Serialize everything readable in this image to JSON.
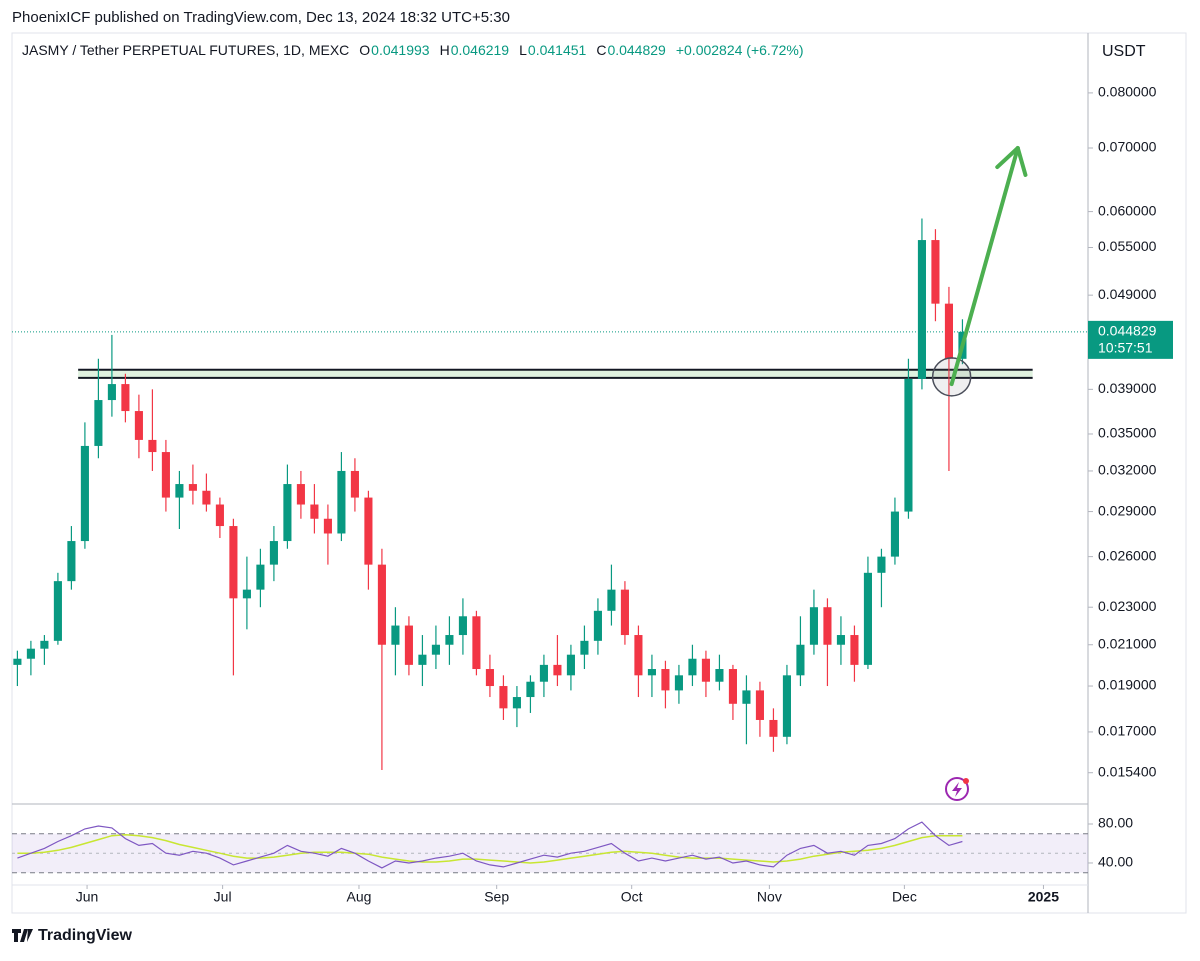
{
  "header": {
    "publisher": "PhoenixICF published on TradingView.com, Dec 13, 2024 18:32 UTC+5:30",
    "symbol": "JASMY / Tether PERPETUAL FUTURES, 1D, MEXC",
    "ohlc": [
      {
        "key": "O",
        "value": "0.041993"
      },
      {
        "key": "H",
        "value": "0.046219"
      },
      {
        "key": "L",
        "value": "0.041451"
      },
      {
        "key": "C",
        "value": "0.044829"
      }
    ],
    "change": "+0.002824 (+6.72%)",
    "currency": "USDT"
  },
  "chart_data": [
    {
      "type": "candlestick",
      "log_scale": true,
      "grid": false,
      "up_color": "#089981",
      "down_color": "#f23645",
      "open": [
        0.02,
        0.0203,
        0.0208,
        0.0212,
        0.0245,
        0.027,
        0.034,
        0.038,
        0.0395,
        0.037,
        0.0345,
        0.0335,
        0.03,
        0.031,
        0.0305,
        0.0295,
        0.028,
        0.0235,
        0.024,
        0.0255,
        0.027,
        0.031,
        0.0295,
        0.0285,
        0.0275,
        0.032,
        0.03,
        0.0255,
        0.021,
        0.022,
        0.02,
        0.0205,
        0.021,
        0.0215,
        0.0225,
        0.0198,
        0.019,
        0.018,
        0.0185,
        0.0192,
        0.02,
        0.0195,
        0.0205,
        0.0212,
        0.0228,
        0.024,
        0.0215,
        0.0195,
        0.0198,
        0.0188,
        0.0195,
        0.0203,
        0.0192,
        0.0198,
        0.0182,
        0.0188,
        0.0175,
        0.0168,
        0.0195,
        0.021,
        0.023,
        0.021,
        0.0215,
        0.02,
        0.025,
        0.026,
        0.029,
        0.04,
        0.056,
        0.048,
        0.041993
      ],
      "high": [
        0.0207,
        0.0212,
        0.0215,
        0.025,
        0.028,
        0.036,
        0.042,
        0.0445,
        0.0405,
        0.0385,
        0.039,
        0.0345,
        0.032,
        0.0325,
        0.0318,
        0.03,
        0.0285,
        0.026,
        0.0265,
        0.028,
        0.0325,
        0.032,
        0.031,
        0.0295,
        0.0335,
        0.033,
        0.0305,
        0.0265,
        0.023,
        0.0225,
        0.0215,
        0.022,
        0.0225,
        0.0235,
        0.0228,
        0.0205,
        0.0195,
        0.019,
        0.0195,
        0.0205,
        0.0215,
        0.021,
        0.022,
        0.0235,
        0.0255,
        0.0245,
        0.022,
        0.0205,
        0.0202,
        0.02,
        0.021,
        0.0207,
        0.0205,
        0.02,
        0.0195,
        0.0192,
        0.018,
        0.02,
        0.0225,
        0.024,
        0.0235,
        0.0225,
        0.022,
        0.026,
        0.0265,
        0.03,
        0.042,
        0.059,
        0.0575,
        0.05,
        0.046219
      ],
      "low": [
        0.019,
        0.0195,
        0.02,
        0.021,
        0.024,
        0.0265,
        0.033,
        0.0365,
        0.036,
        0.033,
        0.032,
        0.029,
        0.0278,
        0.0295,
        0.029,
        0.0272,
        0.0195,
        0.0218,
        0.023,
        0.0245,
        0.0265,
        0.0285,
        0.0275,
        0.0255,
        0.027,
        0.029,
        0.024,
        0.0155,
        0.0195,
        0.0195,
        0.019,
        0.0198,
        0.02,
        0.0205,
        0.0195,
        0.0185,
        0.0175,
        0.0172,
        0.0178,
        0.0185,
        0.019,
        0.0188,
        0.0198,
        0.0205,
        0.022,
        0.021,
        0.0185,
        0.0185,
        0.018,
        0.0182,
        0.019,
        0.0185,
        0.0188,
        0.0175,
        0.0165,
        0.0168,
        0.0162,
        0.0165,
        0.019,
        0.0205,
        0.019,
        0.02,
        0.0192,
        0.0198,
        0.023,
        0.0255,
        0.0285,
        0.039,
        0.046,
        0.032,
        0.041451
      ],
      "close": [
        0.0203,
        0.0208,
        0.0212,
        0.0245,
        0.027,
        0.034,
        0.038,
        0.0395,
        0.037,
        0.0345,
        0.0335,
        0.03,
        0.031,
        0.0305,
        0.0295,
        0.028,
        0.0235,
        0.024,
        0.0255,
        0.027,
        0.031,
        0.0295,
        0.0285,
        0.0275,
        0.032,
        0.03,
        0.0255,
        0.021,
        0.022,
        0.02,
        0.0205,
        0.021,
        0.0215,
        0.0225,
        0.0198,
        0.019,
        0.018,
        0.0185,
        0.0192,
        0.02,
        0.0195,
        0.0205,
        0.0212,
        0.0228,
        0.024,
        0.0215,
        0.0195,
        0.0198,
        0.0188,
        0.0195,
        0.0203,
        0.0192,
        0.0198,
        0.0182,
        0.0188,
        0.0175,
        0.0168,
        0.0195,
        0.021,
        0.023,
        0.021,
        0.0215,
        0.02,
        0.025,
        0.026,
        0.029,
        0.04,
        0.056,
        0.048,
        0.042,
        0.044829
      ],
      "ylim": [
        0.01431,
        0.0925
      ],
      "yticks": [
        {
          "value": 0.08,
          "label": "0.080000"
        },
        {
          "value": 0.07,
          "label": "0.070000"
        },
        {
          "value": 0.06,
          "label": "0.060000"
        },
        {
          "value": 0.055,
          "label": "0.055000"
        },
        {
          "value": 0.049,
          "label": "0.049000"
        },
        {
          "value": 0.039,
          "label": "0.039000"
        },
        {
          "value": 0.035,
          "label": "0.035000"
        },
        {
          "value": 0.032,
          "label": "0.032000"
        },
        {
          "value": 0.029,
          "label": "0.029000"
        },
        {
          "value": 0.026,
          "label": "0.026000"
        },
        {
          "value": 0.023,
          "label": "0.023000"
        },
        {
          "value": 0.021,
          "label": "0.021000"
        },
        {
          "value": 0.019,
          "label": "0.019000"
        },
        {
          "value": 0.017,
          "label": "0.017000"
        },
        {
          "value": 0.0154,
          "label": "0.015400"
        }
      ],
      "xlim": [
        -0.4,
        79.3
      ],
      "xticks": [
        {
          "value": 5.16,
          "label": "Jun"
        },
        {
          "value": 15.2,
          "label": "Jul"
        },
        {
          "value": 25.3,
          "label": "Aug"
        },
        {
          "value": 35.5,
          "label": "Sep"
        },
        {
          "value": 45.5,
          "label": "Oct"
        },
        {
          "value": 55.7,
          "label": "Nov"
        },
        {
          "value": 65.7,
          "label": "Dec"
        },
        {
          "value": 76,
          "label": "2025"
        }
      ],
      "last_price": {
        "value": 0.044829,
        "label": "0.044829",
        "countdown": "10:57:51"
      },
      "zone": {
        "x": [
          4.5,
          75.2
        ],
        "y": [
          0.0401,
          0.0409
        ]
      },
      "arrow": {
        "x": [
          69.2,
          74.1
        ],
        "y": [
          0.0395,
          0.07
        ],
        "color": "#4caf50"
      },
      "circle": {
        "x": 69.2,
        "y": 0.0402
      }
    },
    {
      "type": "line",
      "grid": false,
      "series": [
        {
          "color": "#7e57c2",
          "values": [
            45,
            50,
            55,
            62,
            68,
            75,
            78,
            76,
            65,
            58,
            60,
            50,
            48,
            52,
            50,
            45,
            38,
            42,
            46,
            50,
            58,
            52,
            50,
            47,
            55,
            50,
            42,
            35,
            42,
            40,
            42,
            45,
            47,
            50,
            42,
            38,
            36,
            40,
            44,
            48,
            46,
            50,
            52,
            56,
            60,
            50,
            42,
            45,
            42,
            45,
            48,
            44,
            46,
            40,
            42,
            38,
            36,
            48,
            55,
            58,
            50,
            52,
            48,
            58,
            60,
            65,
            75,
            82,
            68,
            58,
            62
          ]
        },
        {
          "color": "#c8e632",
          "values": [
            50,
            50,
            51,
            53,
            56,
            60,
            64,
            68,
            69,
            68,
            66,
            63,
            59,
            56,
            53,
            50,
            47,
            45,
            45,
            46,
            48,
            50,
            51,
            51,
            51,
            50,
            49,
            46,
            44,
            42,
            41,
            41,
            42,
            44,
            44,
            43,
            42,
            41,
            40,
            41,
            43,
            45,
            47,
            49,
            51,
            52,
            51,
            50,
            48,
            46,
            45,
            45,
            45,
            44,
            43,
            42,
            41,
            42,
            44,
            47,
            49,
            51,
            52,
            53,
            55,
            58,
            62,
            66,
            68,
            68,
            68
          ]
        }
      ],
      "band": [
        30,
        70
      ],
      "ylim": [
        17.4,
        99.5
      ],
      "yticks": [
        {
          "value": 80,
          "label": "80.00"
        },
        {
          "value": 40,
          "label": "40.00"
        }
      ]
    }
  ],
  "footer": {
    "brand": "TradingView"
  }
}
